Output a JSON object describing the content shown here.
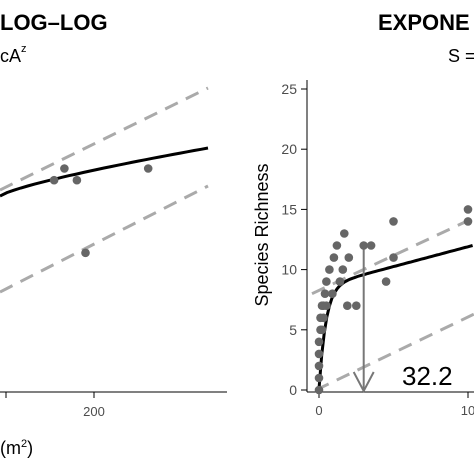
{
  "panels": {
    "left": {
      "title": "LOG–LOG",
      "subtitle_prefix": "cA",
      "subtitle_sup": "z"
    },
    "right": {
      "title": "EXPONE",
      "subtitle": "S ="
    }
  },
  "xlabel": {
    "prefix": "(m",
    "sup": "2",
    "suffix": ")"
  },
  "chart_data": [
    {
      "type": "scatter",
      "panel": "left",
      "title": "LOG–LOG",
      "xlabel": "(m²)",
      "x_ticks": [
        200
      ],
      "points": {
        "x": [
          130,
          148,
          170,
          185,
          295
        ],
        "y": [
          9.7,
          10.2,
          9.7,
          6.6,
          10.2
        ]
      },
      "fit_line_color": "#000000",
      "interval_line_color": "#aaaaaa",
      "point_color": "#666666"
    },
    {
      "type": "scatter",
      "panel": "right",
      "title": "EXPONE",
      "ylabel": "Species Richness",
      "y_ticks": [
        0,
        5,
        10,
        15,
        20,
        25
      ],
      "ylim": [
        0,
        25
      ],
      "x_ticks": [
        0,
        10
      ],
      "x_tick_labels": [
        "0",
        "10"
      ],
      "annotation": "32.2",
      "annotation_x": 3,
      "points": {
        "x": [
          0,
          0,
          0,
          0,
          0,
          0.1,
          0.1,
          0.2,
          0.2,
          0.3,
          0.3,
          0.4,
          0.5,
          0.5,
          0.7,
          0.9,
          1.0,
          1.2,
          1.4,
          1.6,
          1.7,
          1.9,
          2.0,
          2.5,
          3.0,
          3.5,
          4.5,
          5.0,
          5.0,
          10.0,
          10.0,
          10.5,
          11.0
        ],
        "y": [
          0,
          1,
          2,
          3,
          4,
          5,
          6,
          7,
          5,
          6,
          7,
          8,
          9,
          7,
          10,
          8,
          11,
          12,
          9,
          10,
          13,
          7,
          11,
          7,
          12,
          12,
          9,
          11,
          14,
          15,
          14,
          13,
          10
        ]
      },
      "fit_line_color": "#000000",
      "interval_line_color": "#aaaaaa",
      "point_color": "#666666",
      "arrow_color": "#777777"
    }
  ]
}
